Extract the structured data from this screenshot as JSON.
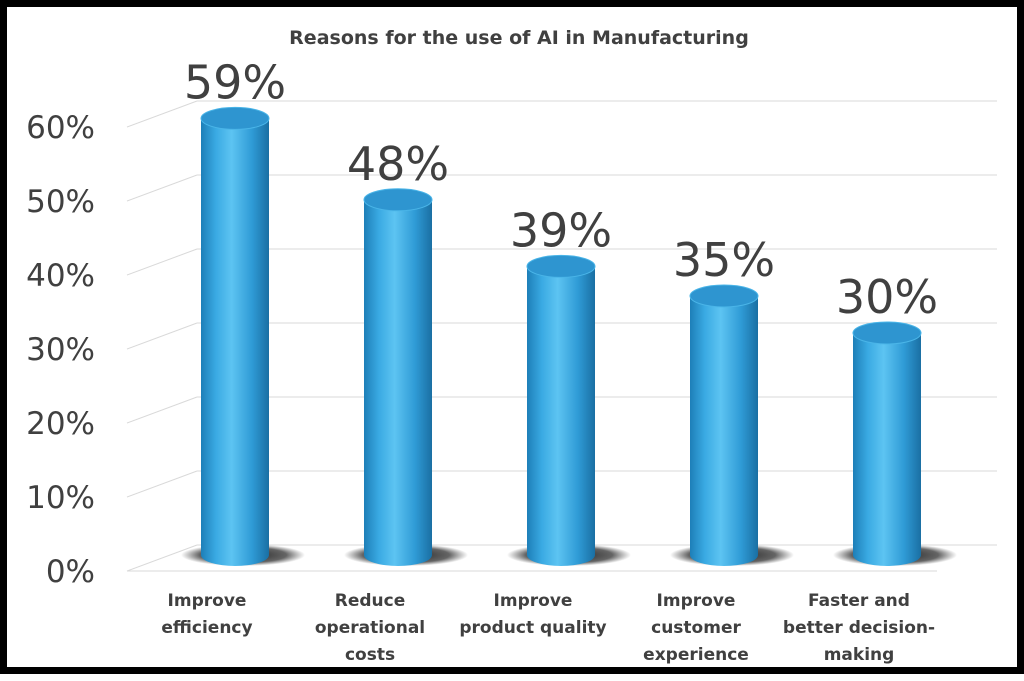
{
  "chart_data": {
    "type": "bar",
    "title": "Reasons for the use of AI in Manufacturing",
    "categories": [
      [
        "Improve",
        "efficiency"
      ],
      [
        "Reduce",
        "operational",
        "costs"
      ],
      [
        "Improve",
        "product quality"
      ],
      [
        "Improve",
        "customer",
        "experience"
      ],
      [
        "Faster and",
        "better decision-",
        "making"
      ]
    ],
    "values": [
      59,
      48,
      39,
      35,
      30
    ],
    "data_labels": [
      "59%",
      "48%",
      "39%",
      "35%",
      "30%"
    ],
    "y_ticks": [
      "0%",
      "10%",
      "20%",
      "30%",
      "40%",
      "50%",
      "60%"
    ],
    "ylim": [
      0,
      60
    ],
    "grid": true,
    "legend": "none",
    "bar_color": "#3aa9e0"
  }
}
